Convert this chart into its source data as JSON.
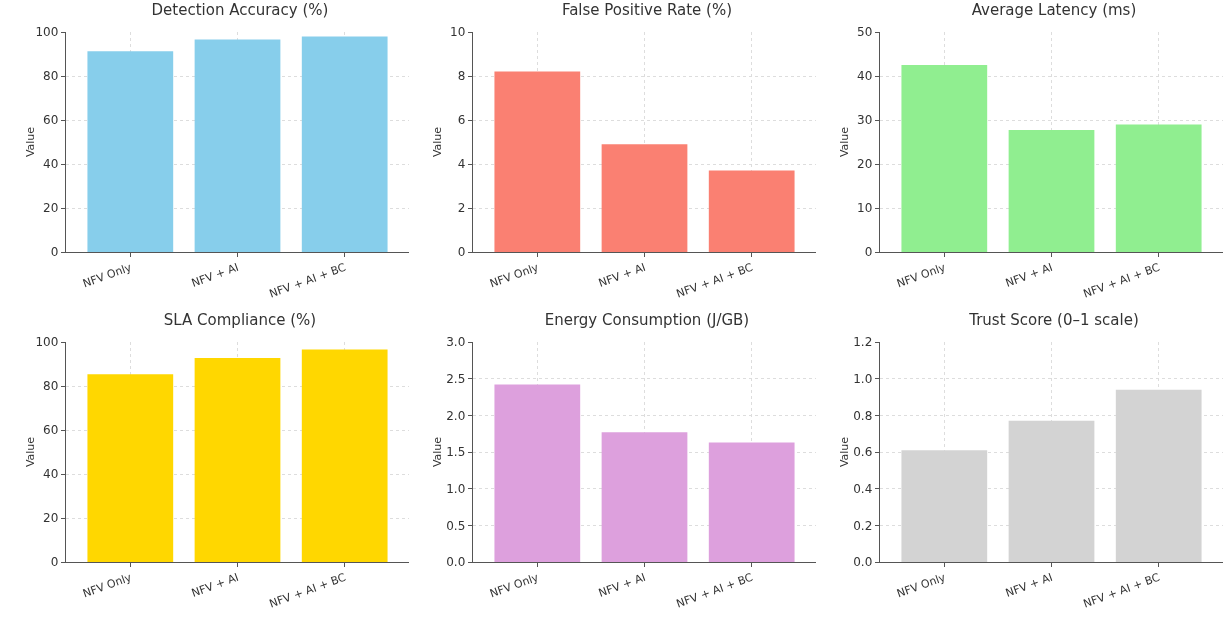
{
  "chart_data": [
    {
      "type": "bar",
      "title": "Detection Accuracy (%)",
      "ylabel": "Value",
      "categories": [
        "NFV Only",
        "NFV + AI",
        "NFV + AI + BC"
      ],
      "values": [
        91.2,
        96.6,
        98.0
      ],
      "color": "#87ceeb",
      "ylim": [
        0,
        100
      ],
      "yticks": [
        0,
        20,
        40,
        60,
        80,
        100
      ],
      "grid": true
    },
    {
      "type": "bar",
      "title": "False Positive Rate (%)",
      "ylabel": "Value",
      "categories": [
        "NFV Only",
        "NFV + AI",
        "NFV + AI + BC"
      ],
      "values": [
        8.2,
        4.9,
        3.7
      ],
      "color": "#fa8072",
      "ylim": [
        0,
        10
      ],
      "yticks": [
        0,
        2,
        4,
        6,
        8,
        10
      ],
      "grid": true
    },
    {
      "type": "bar",
      "title": "Average Latency (ms)",
      "ylabel": "Value",
      "categories": [
        "NFV Only",
        "NFV + AI",
        "NFV + AI + BC"
      ],
      "values": [
        42.5,
        27.7,
        29.0
      ],
      "color": "#90ee90",
      "ylim": [
        0,
        50
      ],
      "yticks": [
        0,
        10,
        20,
        30,
        40,
        50
      ],
      "grid": true
    },
    {
      "type": "bar",
      "title": "SLA Compliance (%)",
      "ylabel": "Value",
      "categories": [
        "NFV Only",
        "NFV + AI",
        "NFV + AI + BC"
      ],
      "values": [
        85.3,
        92.7,
        96.6
      ],
      "color": "#ffd700",
      "ylim": [
        0,
        100
      ],
      "yticks": [
        0,
        20,
        40,
        60,
        80,
        100
      ],
      "grid": true
    },
    {
      "type": "bar",
      "title": "Energy Consumption (J/GB)",
      "ylabel": "Value",
      "categories": [
        "NFV Only",
        "NFV + AI",
        "NFV + AI + BC"
      ],
      "values": [
        2.42,
        1.77,
        1.63
      ],
      "color": "#dda0dd",
      "ylim": [
        0,
        3
      ],
      "yticks": [
        {
          "value": 0,
          "label": "0.0"
        },
        {
          "value": 0.5,
          "label": "0.5"
        },
        {
          "value": 1,
          "label": "1.0"
        },
        {
          "value": 1.5,
          "label": "1.5"
        },
        {
          "value": 2,
          "label": "2.0"
        },
        {
          "value": 2.5,
          "label": "2.5"
        },
        {
          "value": 3,
          "label": "3.0"
        }
      ],
      "grid": true
    },
    {
      "type": "bar",
      "title": "Trust Score (0–1 scale)",
      "ylabel": "Value",
      "categories": [
        "NFV Only",
        "NFV + AI",
        "NFV + AI + BC"
      ],
      "values": [
        0.61,
        0.77,
        0.94
      ],
      "color": "#d3d3d3",
      "ylim": [
        0,
        1.2
      ],
      "yticks": [
        {
          "value": 0,
          "label": "0.0"
        },
        {
          "value": 0.2,
          "label": "0.2"
        },
        {
          "value": 0.4,
          "label": "0.4"
        },
        {
          "value": 0.6,
          "label": "0.6"
        },
        {
          "value": 0.8,
          "label": "0.8"
        },
        {
          "value": 1,
          "label": "1.0"
        },
        {
          "value": 1.2,
          "label": "1.2"
        }
      ],
      "grid": true
    }
  ]
}
